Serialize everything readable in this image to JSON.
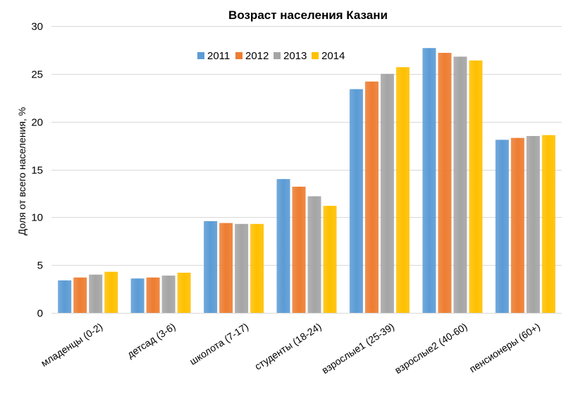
{
  "chart_data": {
    "type": "bar",
    "title": "Возраст населения  Казани",
    "ylabel": "Доля от всего населения, %",
    "xlabel": "",
    "ylim": [
      0,
      30
    ],
    "yticks": [
      0,
      5,
      10,
      15,
      20,
      25,
      30
    ],
    "grid": true,
    "legend_position": "top-center",
    "categories": [
      "младенцы (0-2)",
      "детсад (3-6)",
      "школота (7-17)",
      "студенты (18-24)",
      "взрослые1 (25-39)",
      "взрослые2 (40-60)",
      "пенсионеры (60+)"
    ],
    "series": [
      {
        "name": "2011",
        "color": "#5B9BD5",
        "values": [
          3.4,
          3.6,
          9.6,
          14.0,
          23.4,
          27.7,
          18.1
        ]
      },
      {
        "name": "2012",
        "color": "#ED7D31",
        "values": [
          3.7,
          3.7,
          9.4,
          13.2,
          24.2,
          27.2,
          18.3
        ]
      },
      {
        "name": "2013",
        "color": "#A5A5A5",
        "values": [
          4.0,
          3.9,
          9.3,
          12.2,
          25.0,
          26.8,
          18.5
        ]
      },
      {
        "name": "2014",
        "color": "#FFC000",
        "values": [
          4.3,
          4.2,
          9.3,
          11.2,
          25.7,
          26.4,
          18.6
        ]
      }
    ]
  }
}
